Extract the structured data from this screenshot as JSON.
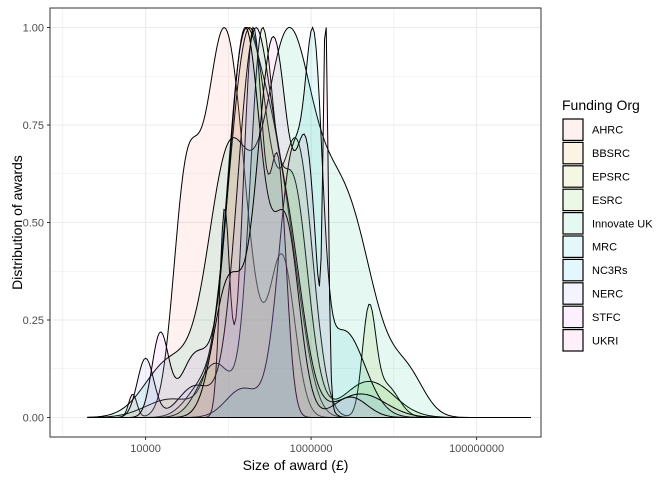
{
  "chart_data": {
    "type": "area",
    "subtype": "density",
    "title": "",
    "xlabel": "Size of award (£)",
    "ylabel": "Distribution of awards",
    "x_scale": "log10",
    "xlim": [
      700,
      600000000
    ],
    "ylim": [
      0,
      1
    ],
    "x_ticks": [
      10000,
      1000000,
      100000000
    ],
    "x_tick_labels": [
      "10000",
      "1000000",
      "100000000"
    ],
    "y_ticks": [
      0,
      0.25,
      0.5,
      0.75,
      1
    ],
    "y_tick_labels": [
      "0.00",
      "0.25",
      "0.50",
      "0.75",
      "1.00"
    ],
    "grid": true,
    "legend": {
      "title": "Funding Org",
      "position": "right"
    },
    "fill_opacity": 0.1,
    "series": [
      {
        "name": "AHRC",
        "color": "#F8766D",
        "components": [
          [
            7000,
            0.05,
            0.06
          ],
          [
            30000,
            0.15,
            0.5
          ],
          [
            90000,
            0.25,
            1.0
          ],
          [
            450000,
            0.15,
            0.4
          ]
        ]
      },
      {
        "name": "BBSRC",
        "color": "#D89000",
        "components": [
          [
            50000,
            0.2,
            0.1
          ],
          [
            140000,
            0.18,
            0.95
          ],
          [
            300000,
            0.2,
            0.75
          ],
          [
            600000,
            0.18,
            0.3
          ]
        ]
      },
      {
        "name": "EPSRC",
        "color": "#A3A500",
        "components": [
          [
            20000,
            0.3,
            0.04
          ],
          [
            180000,
            0.25,
            0.85
          ],
          [
            700000,
            0.18,
            0.55
          ],
          [
            5000000,
            0.08,
            0.22
          ],
          [
            8000000,
            0.15,
            0.07
          ]
        ]
      },
      {
        "name": "ESRC",
        "color": "#39B600",
        "components": [
          [
            70000,
            0.2,
            0.15
          ],
          [
            250000,
            0.14,
            1.0
          ],
          [
            600000,
            0.18,
            0.65
          ],
          [
            5000000,
            0.3,
            0.1
          ]
        ]
      },
      {
        "name": "Innovate UK",
        "color": "#00BF7D",
        "components": [
          [
            20000,
            0.3,
            0.08
          ],
          [
            100000,
            0.25,
            0.35
          ],
          [
            500000,
            0.3,
            0.5
          ],
          [
            2500000,
            0.35,
            0.3
          ],
          [
            15000000,
            0.2,
            0.05
          ]
        ]
      },
      {
        "name": "MRC",
        "color": "#00BFC4",
        "components": [
          [
            150000,
            0.2,
            0.1
          ],
          [
            600000,
            0.17,
            0.9
          ],
          [
            1100000,
            0.1,
            0.95
          ],
          [
            2500000,
            0.25,
            0.3
          ]
        ]
      },
      {
        "name": "NC3Rs",
        "color": "#00B0F6",
        "components": [
          [
            90000,
            0.06,
            0.5
          ],
          [
            200000,
            0.12,
            0.95
          ],
          [
            400000,
            0.1,
            0.6
          ]
        ]
      },
      {
        "name": "NERC",
        "color": "#9590FF",
        "components": [
          [
            10000,
            0.1,
            0.15
          ],
          [
            40000,
            0.2,
            0.08
          ],
          [
            200000,
            0.2,
            0.92
          ],
          [
            500000,
            0.2,
            0.45
          ],
          [
            4000000,
            0.3,
            0.06
          ]
        ]
      },
      {
        "name": "STFC",
        "color": "#E76BF3",
        "components": [
          [
            15000,
            0.1,
            0.2
          ],
          [
            40000,
            0.18,
            0.15
          ],
          [
            160000,
            0.2,
            0.95
          ],
          [
            500000,
            0.16,
            0.45
          ],
          [
            3000000,
            0.2,
            0.05
          ]
        ]
      },
      {
        "name": "UKRI",
        "color": "#FF62BC",
        "components": [
          [
            100000,
            0.18,
            0.35
          ],
          [
            350000,
            0.2,
            1.0
          ],
          [
            900000,
            0.12,
            0.6
          ],
          [
            1500000,
            0.03,
            0.95
          ]
        ]
      }
    ]
  }
}
